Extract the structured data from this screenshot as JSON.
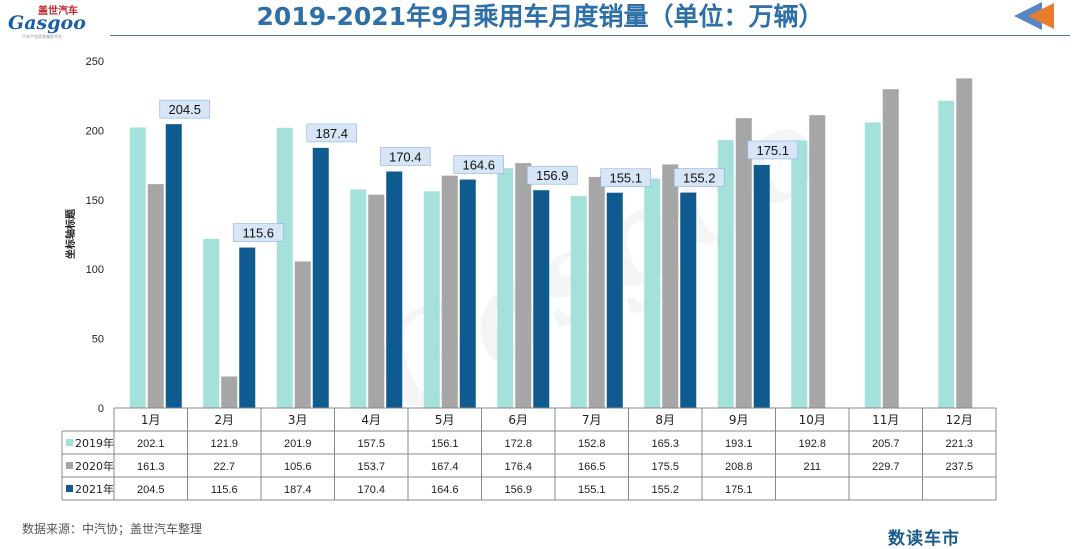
{
  "header": {
    "title": "2019-2021年9月乘用车月度销量（单位：万辆）",
    "logo_text": "Gasgoo",
    "logo_cn": "盖世汽车",
    "logo_sub": "汽车产业信息服务平台"
  },
  "footer": {
    "source": "数据来源：中汽协；盖世汽车整理",
    "brand": "数读车市"
  },
  "watermark": "Gasgoo",
  "colors": {
    "s2019": "#a3e1da",
    "s2020": "#a6a6a6",
    "s2021": "#0f5a8e",
    "title": "#2e6fa7",
    "label_box": "#d7e6f6",
    "arrow_orange": "#e87b2d",
    "arrow_blue": "#5b86c5"
  },
  "icons": {
    "nav": "back-arrow-icon"
  },
  "chart_data": {
    "type": "bar",
    "ylabel": "坐标轴标题",
    "ylim": [
      0,
      250
    ],
    "yticks": [
      0,
      50,
      100,
      150,
      200,
      250
    ],
    "categories": [
      "1月",
      "2月",
      "3月",
      "4月",
      "5月",
      "6月",
      "7月",
      "8月",
      "9月",
      "10月",
      "11月",
      "12月"
    ],
    "series": [
      {
        "name": "2019年",
        "values": [
          "202.1",
          "121.9",
          "201.9",
          "157.5",
          "156.1",
          "172.8",
          "152.8",
          "165.3",
          "193.1",
          "192.8",
          "205.7",
          "221.3"
        ]
      },
      {
        "name": "2020年",
        "values": [
          "161.3",
          "22.7",
          "105.6",
          "153.7",
          "167.4",
          "176.4",
          "166.5",
          "175.5",
          "208.8",
          "211",
          "229.7",
          "237.5"
        ]
      },
      {
        "name": "2021年",
        "values": [
          "204.5",
          "115.6",
          "187.4",
          "170.4",
          "164.6",
          "156.9",
          "155.1",
          "155.2",
          "175.1",
          "",
          "",
          ""
        ]
      }
    ],
    "data_labels_series": 2,
    "grid": false,
    "legend": "data-table"
  }
}
